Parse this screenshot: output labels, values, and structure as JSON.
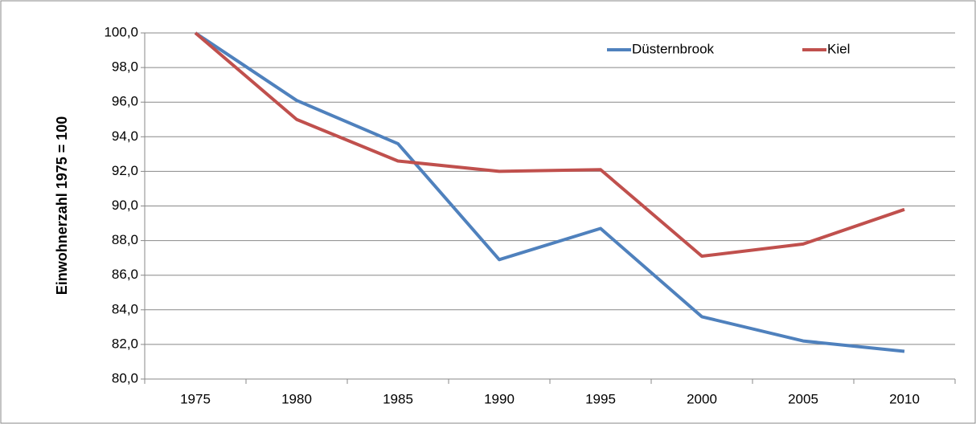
{
  "chart_data": {
    "type": "line",
    "y_label": "Einwohnerzahl 1975 = 100",
    "categories": [
      "1975",
      "1980",
      "1985",
      "1990",
      "1995",
      "2000",
      "2005",
      "2010"
    ],
    "series": [
      {
        "name": "Düsternbrook",
        "color": "#4f81bd",
        "values": [
          100,
          96.1,
          93.6,
          86.9,
          88.7,
          83.6,
          82.2,
          81.6
        ]
      },
      {
        "name": "Kiel",
        "color": "#c0504d",
        "values": [
          100,
          95.0,
          92.6,
          92.0,
          92.1,
          87.1,
          87.8,
          89.8
        ]
      }
    ],
    "ylim": [
      80,
      100
    ],
    "yticks": [
      {
        "value": 80,
        "label": "80,0"
      },
      {
        "value": 82,
        "label": "82,0"
      },
      {
        "value": 84,
        "label": "84,0"
      },
      {
        "value": 86,
        "label": "86,0"
      },
      {
        "value": 88,
        "label": "88,0"
      },
      {
        "value": 90,
        "label": "90,0"
      },
      {
        "value": 92,
        "label": "92,0"
      },
      {
        "value": 94,
        "label": "94,0"
      },
      {
        "value": 96,
        "label": "96,0"
      },
      {
        "value": 98,
        "label": "98,0"
      },
      {
        "value": 100,
        "label": "100,0"
      }
    ],
    "grid": true,
    "legend": "top-right"
  }
}
